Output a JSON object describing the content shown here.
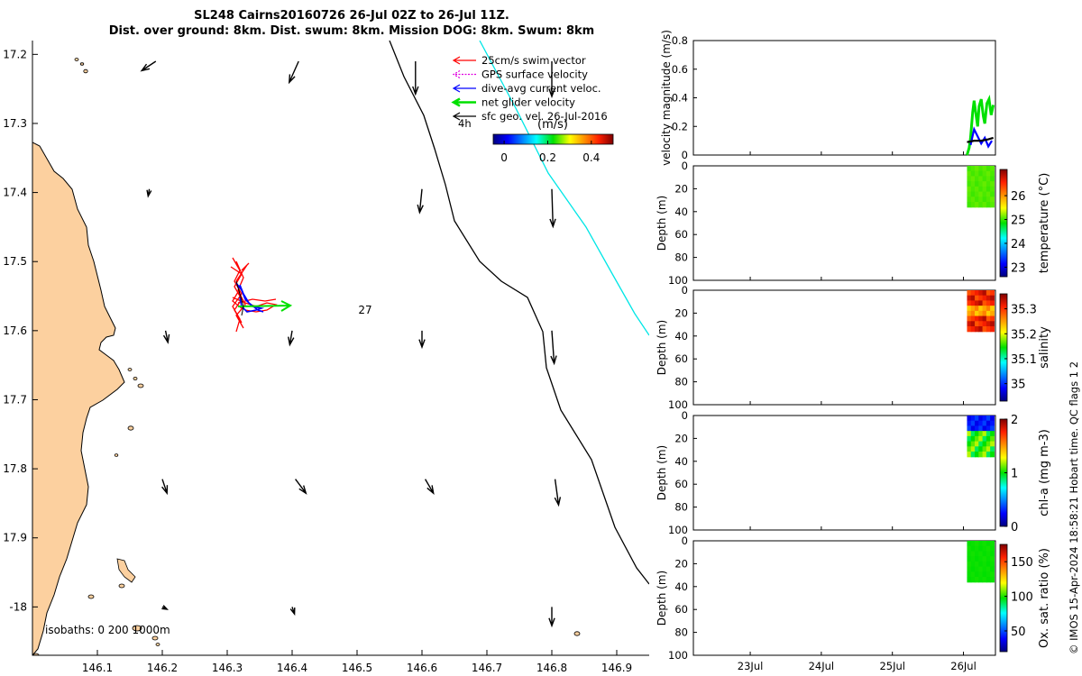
{
  "title": {
    "line1": "SL248 Cairns20160726 26-Jul 02Z to 26-Jul 11Z.",
    "line2": "Dist. over ground: 8km. Dist. swum: 8km. Mission DOG: 8km. Swum: 8km"
  },
  "credit": "© IMOS 15-Apr-2024 18:58:21 Hobart time. QC flags 1  2",
  "colors": {
    "land": "#fcd09f",
    "track": "#ff0000",
    "swim_vector": "#ff0000",
    "gps_velocity": "#e000e0",
    "current": "#0000ff",
    "net_velocity": "#00e000",
    "geo_velocity": "#000000",
    "isobath_200": "#000000",
    "isobath_1000": "#00e6e6"
  },
  "chart_data": [
    {
      "type": "scatter",
      "name": "map",
      "x_ticks": [
        "146.1",
        "146.2",
        "146.3",
        "146.4",
        "146.5",
        "146.6",
        "146.7",
        "146.8",
        "146.9"
      ],
      "y_ticks": [
        "17.2",
        "17.3",
        "17.4",
        "17.5",
        "17.6",
        "17.7",
        "17.8",
        "17.9",
        "-18"
      ],
      "xlim": [
        146.0,
        146.95
      ],
      "ylim": [
        -18.07,
        -17.18
      ],
      "legend": {
        "position": "top-right",
        "entries": [
          {
            "label": "25cm/s swim vector",
            "color": "#ff0000",
            "head": "thin"
          },
          {
            "label": "GPS surface velocity",
            "color": "#e000e0",
            "head": "dotted"
          },
          {
            "label": "dive-avg current veloc.",
            "color": "#0000ff",
            "head": "thin"
          },
          {
            "label": "net glider velocity",
            "color": "#00e000",
            "head": "thick"
          },
          {
            "label": "sfc geo. vel. 26-Jul-2016",
            "color": "#000000",
            "head": "thin"
          }
        ],
        "duration_label": "4h"
      },
      "colorbar": {
        "title": "(m/s)",
        "ticks": [
          "0",
          "0.2",
          "0.4"
        ],
        "range": [
          -0.05,
          0.5
        ]
      },
      "annotations": [
        {
          "text": "27",
          "x": 146.505,
          "y": -17.555
        }
      ],
      "isobath_label": "isobaths: 0   200  1000m",
      "geo_velocity_grid": [
        {
          "x": 146.19,
          "y": -17.21,
          "u": -0.12,
          "v": -0.08
        },
        {
          "x": 146.41,
          "y": -17.21,
          "u": -0.08,
          "v": -0.18
        },
        {
          "x": 146.59,
          "y": -17.21,
          "u": 0.0,
          "v": -0.28
        },
        {
          "x": 146.8,
          "y": -17.21,
          "u": 0.0,
          "v": -0.3
        },
        {
          "x": 146.18,
          "y": -17.395,
          "u": -0.01,
          "v": -0.06
        },
        {
          "x": 146.6,
          "y": -17.395,
          "u": -0.02,
          "v": -0.2
        },
        {
          "x": 146.8,
          "y": -17.395,
          "u": 0.01,
          "v": -0.32
        },
        {
          "x": 146.205,
          "y": -17.6,
          "u": 0.02,
          "v": -0.1
        },
        {
          "x": 146.4,
          "y": -17.6,
          "u": -0.02,
          "v": -0.12
        },
        {
          "x": 146.6,
          "y": -17.6,
          "u": 0.0,
          "v": -0.14
        },
        {
          "x": 146.8,
          "y": -17.6,
          "u": 0.02,
          "v": -0.28
        },
        {
          "x": 146.2,
          "y": -17.815,
          "u": 0.04,
          "v": -0.12
        },
        {
          "x": 146.405,
          "y": -17.815,
          "u": 0.09,
          "v": -0.12
        },
        {
          "x": 146.605,
          "y": -17.815,
          "u": 0.07,
          "v": -0.12
        },
        {
          "x": 146.805,
          "y": -17.815,
          "u": 0.03,
          "v": -0.22
        },
        {
          "x": 146.2,
          "y": -18.0,
          "u": 0.04,
          "v": -0.02
        },
        {
          "x": 146.4,
          "y": -18.0,
          "u": 0.02,
          "v": -0.06
        },
        {
          "x": 146.8,
          "y": -18.0,
          "u": 0.0,
          "v": -0.16
        }
      ]
    },
    {
      "type": "line",
      "name": "velocity magnitude",
      "ylabel": "velocity magnitude (m/s)",
      "ylim": [
        0,
        0.8
      ],
      "y_ticks": [
        "0",
        "0.2",
        "0.4",
        "0.6",
        "0.8"
      ],
      "x_ticks": [
        "23Jul",
        "24Jul",
        "25Jul",
        "26Jul"
      ],
      "series": [
        {
          "color": "#00e000",
          "x": [
            26.05,
            26.08,
            26.1,
            26.13,
            26.15,
            26.18,
            26.2,
            26.22,
            26.25,
            26.28,
            26.3,
            26.33,
            26.36,
            26.39,
            26.42
          ],
          "y": [
            0.0,
            0.05,
            0.12,
            0.3,
            0.38,
            0.27,
            0.2,
            0.34,
            0.39,
            0.27,
            0.22,
            0.36,
            0.39,
            0.28,
            0.35
          ]
        },
        {
          "color": "#0000ff",
          "x": [
            26.1,
            26.15,
            26.2,
            26.25,
            26.3,
            26.35,
            26.4
          ],
          "y": [
            0.07,
            0.18,
            0.13,
            0.08,
            0.12,
            0.06,
            0.1
          ]
        },
        {
          "color": "#000000",
          "x": [
            26.05,
            26.15,
            26.25,
            26.35,
            26.42
          ],
          "y": [
            0.09,
            0.1,
            0.1,
            0.11,
            0.12
          ]
        }
      ]
    },
    {
      "type": "heatmap",
      "name": "temperature",
      "ylabel": "Depth (m)",
      "cbar_label": "temperature (°C)",
      "ylim": [
        100,
        0
      ],
      "y_ticks": [
        "0",
        "20",
        "40",
        "60",
        "80",
        "100"
      ],
      "cbar_ticks": [
        "23",
        "24",
        "25",
        "26"
      ],
      "cbar_range": [
        22.6,
        27.1
      ],
      "value_range": [
        24.9,
        25.1
      ],
      "depth_range": [
        0,
        36
      ],
      "x_ticks": [
        "23Jul",
        "24Jul",
        "25Jul",
        "26Jul"
      ]
    },
    {
      "type": "heatmap",
      "name": "salinity",
      "ylabel": "Depth (m)",
      "cbar_label": "salinity",
      "ylim": [
        100,
        0
      ],
      "y_ticks": [
        "0",
        "20",
        "40",
        "60",
        "80",
        "100"
      ],
      "cbar_ticks": [
        "35",
        "35.1",
        "35.2",
        "35.3"
      ],
      "cbar_range": [
        34.93,
        35.36
      ],
      "value_range": [
        35.2,
        35.34
      ],
      "depth_range": [
        0,
        36
      ],
      "x_ticks": [
        "23Jul",
        "24Jul",
        "25Jul",
        "26Jul"
      ]
    },
    {
      "type": "heatmap",
      "name": "chl-a",
      "ylabel": "Depth (m)",
      "cbar_label": "chl-a (mg m-3)",
      "ylim": [
        100,
        0
      ],
      "y_ticks": [
        "0",
        "20",
        "40",
        "60",
        "80",
        "100"
      ],
      "cbar_ticks": [
        "0",
        "1",
        "2"
      ],
      "cbar_range": [
        0,
        2
      ],
      "value_range": [
        0.2,
        1.2
      ],
      "depth_range": [
        0,
        36
      ],
      "x_ticks": [
        "23Jul",
        "24Jul",
        "25Jul",
        "26Jul"
      ]
    },
    {
      "type": "heatmap",
      "name": "oxygen",
      "ylabel": "Depth (m)",
      "cbar_label": "Ox. sat. ratio (%)",
      "ylim": [
        100,
        0
      ],
      "y_ticks": [
        "0",
        "20",
        "40",
        "60",
        "80",
        "100"
      ],
      "cbar_ticks": [
        "50",
        "100",
        "150"
      ],
      "cbar_range": [
        20,
        175
      ],
      "value_range": [
        96,
        99
      ],
      "depth_range": [
        0,
        36
      ],
      "x_ticks": [
        "23Jul",
        "24Jul",
        "25Jul",
        "26Jul"
      ]
    }
  ]
}
